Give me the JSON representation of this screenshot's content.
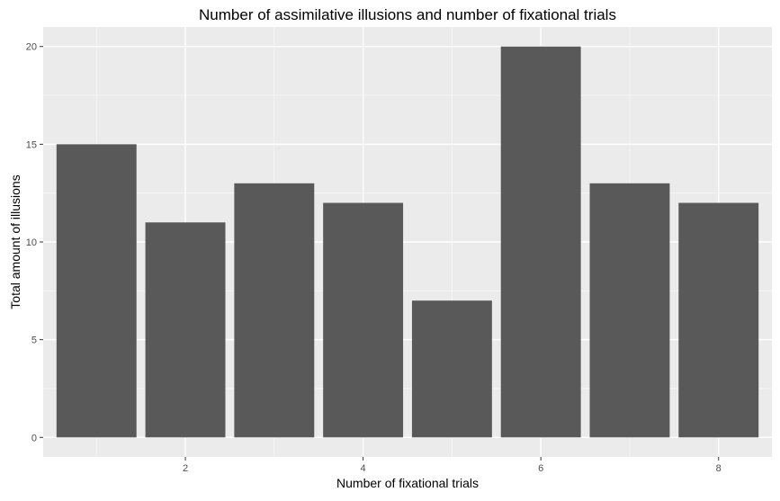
{
  "chart_data": {
    "type": "bar",
    "title": "Number of assimilative illusions and number of fixational trials",
    "xlabel": "Number of fixational trials",
    "ylabel": "Total amount of illusions",
    "categories": [
      1,
      2,
      3,
      4,
      5,
      6,
      7,
      8
    ],
    "values": [
      15,
      11,
      13,
      12,
      7,
      20,
      13,
      12
    ],
    "xlim": [
      0.4,
      8.6
    ],
    "ylim": [
      -1,
      21
    ],
    "x_ticks": [
      2,
      4,
      6,
      8
    ],
    "x_tick_labels": [
      "2",
      "4",
      "6",
      "8"
    ],
    "y_ticks": [
      0,
      5,
      10,
      15,
      20
    ],
    "y_tick_labels": [
      "0",
      "5",
      "10",
      "15",
      "20"
    ],
    "grid": true,
    "legend": "none",
    "colors": {
      "panel_background": "#ebebeb",
      "grid_major": "#ffffff",
      "grid_minor": "#f5f5f5",
      "bar_fill": "#595959",
      "text": "#000000",
      "tick_text": "#4d4d4d"
    }
  }
}
